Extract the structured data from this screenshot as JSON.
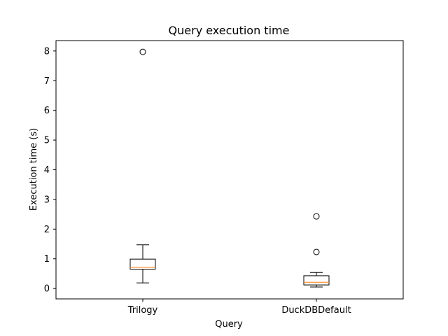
{
  "chart_data": {
    "type": "boxplot",
    "title": "Query execution time",
    "xlabel": "Query",
    "ylabel": "Execution time (s)",
    "ylim": [
      -0.35,
      8.35
    ],
    "yticks": [
      "0",
      "1",
      "2",
      "3",
      "4",
      "5",
      "6",
      "7",
      "8"
    ],
    "grid": false,
    "categories": [
      "Trilogy",
      "DuckDBDefault"
    ],
    "boxes": [
      {
        "name": "Trilogy",
        "whisker_low": 0.19,
        "q1": 0.65,
        "median": 0.71,
        "q3": 0.99,
        "whisker_high": 1.47,
        "outliers": [
          7.97
        ]
      },
      {
        "name": "DuckDBDefault",
        "whisker_low": 0.05,
        "q1": 0.12,
        "median": 0.21,
        "q3": 0.43,
        "whisker_high": 0.54,
        "outliers": [
          1.23,
          2.43
        ]
      }
    ],
    "colors": {
      "box": "#000000",
      "median": "#ff7f0e",
      "outlier": "#000000"
    }
  }
}
